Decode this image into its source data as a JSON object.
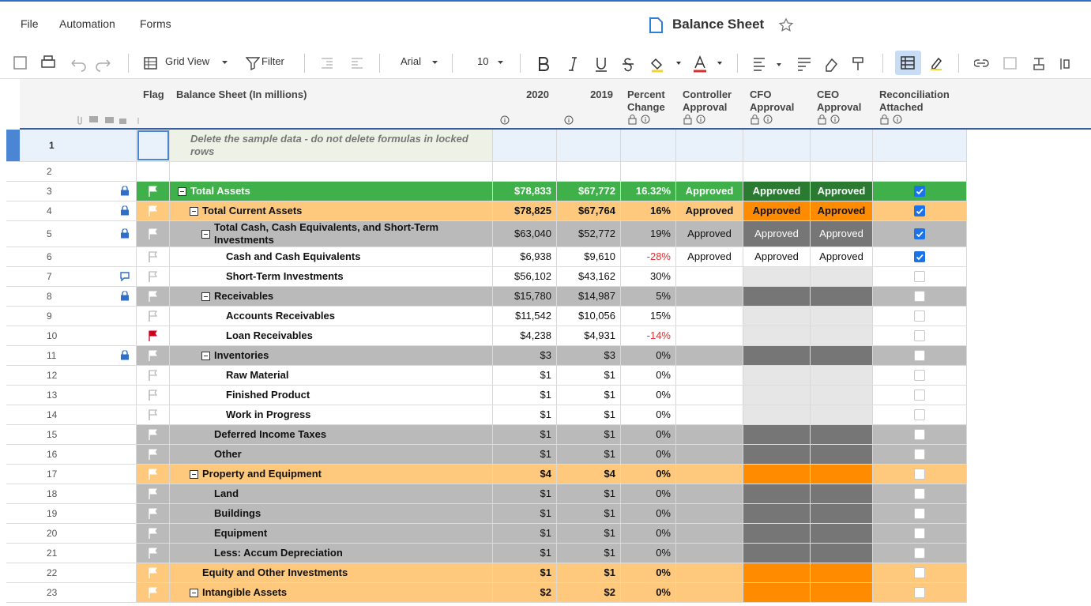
{
  "menu": [
    "File",
    "Automation",
    "Forms"
  ],
  "title": "Balance Sheet",
  "toolbar": {
    "view": "Grid View",
    "filter": "Filter",
    "font": "Arial",
    "size": "10"
  },
  "columns": [
    "Flag",
    "Balance Sheet (In millions)",
    "2020",
    "2019",
    "Percent Change",
    "Controller Approval",
    "CFO Approval",
    "CEO Approval",
    "Reconciliation Attached"
  ],
  "rows": [
    {
      "num": 1,
      "name": "Delete the sample data - do not delete formulas in locked rows",
      "style": "note"
    },
    {
      "num": 2,
      "style": "blank"
    },
    {
      "num": 3,
      "name": "Total Assets",
      "level": 0,
      "style": "green",
      "collapse": true,
      "lock": true,
      "v2020": "$78,833",
      "v2019": "$67,772",
      "pct": "16.32%",
      "ctrl": "Approved",
      "cfo": "Approved",
      "ceo": "Approved",
      "recon": true
    },
    {
      "num": 4,
      "name": "Total Current Assets",
      "level": 1,
      "style": "orange",
      "collapse": true,
      "lock": true,
      "v2020": "$78,825",
      "v2019": "$67,764",
      "pct": "16%",
      "ctrl": "Approved",
      "cfo": "Approved",
      "ceo": "Approved",
      "recon": true
    },
    {
      "num": 5,
      "name": "Total Cash, Cash Equivalents, and Short-Term Investments",
      "level": 2,
      "style": "gray",
      "collapse": true,
      "lock": true,
      "v2020": "$63,040",
      "v2019": "$52,772",
      "pct": "19%",
      "ctrl": "Approved",
      "cfo": "Approved",
      "ceo": "Approved",
      "recon": true
    },
    {
      "num": 6,
      "name": "Cash and Cash Equivalents",
      "level": 3,
      "style": "white",
      "v2020": "$6,938",
      "v2019": "$9,610",
      "pct": "-28%",
      "negative": true,
      "ctrl": "Approved",
      "cfo": "Approved",
      "ceo": "Approved",
      "recon": true
    },
    {
      "num": 7,
      "name": "Short-Term Investments",
      "level": 3,
      "style": "white",
      "comment": true,
      "v2020": "$56,102",
      "v2019": "$43,162",
      "pct": "30%",
      "recon": false
    },
    {
      "num": 8,
      "name": "Receivables",
      "level": 2,
      "style": "gray",
      "collapse": true,
      "lock": true,
      "v2020": "$15,780",
      "v2019": "$14,987",
      "pct": "5%",
      "recon": false
    },
    {
      "num": 9,
      "name": "Accounts Receivables",
      "level": 3,
      "style": "white",
      "v2020": "$11,542",
      "v2019": "$10,056",
      "pct": "15%",
      "recon": false
    },
    {
      "num": 10,
      "name": "Loan Receivables",
      "level": 3,
      "style": "white",
      "flag": "red",
      "v2020": "$4,238",
      "v2019": "$4,931",
      "pct": "-14%",
      "negative": true,
      "recon": false
    },
    {
      "num": 11,
      "name": "Inventories",
      "level": 2,
      "style": "gray",
      "collapse": true,
      "lock": true,
      "v2020": "$3",
      "v2019": "$3",
      "pct": "0%",
      "recon": false
    },
    {
      "num": 12,
      "name": "Raw Material",
      "level": 3,
      "style": "white",
      "v2020": "$1",
      "v2019": "$1",
      "pct": "0%",
      "recon": false
    },
    {
      "num": 13,
      "name": "Finished Product",
      "level": 3,
      "style": "white",
      "v2020": "$1",
      "v2019": "$1",
      "pct": "0%",
      "recon": false
    },
    {
      "num": 14,
      "name": "Work in Progress",
      "level": 3,
      "style": "white",
      "v2020": "$1",
      "v2019": "$1",
      "pct": "0%",
      "recon": false
    },
    {
      "num": 15,
      "name": "Deferred Income Taxes",
      "level": 2,
      "style": "gray",
      "v2020": "$1",
      "v2019": "$1",
      "pct": "0%",
      "recon": false
    },
    {
      "num": 16,
      "name": "Other",
      "level": 2,
      "style": "gray",
      "v2020": "$1",
      "v2019": "$1",
      "pct": "0%",
      "recon": false
    },
    {
      "num": 17,
      "name": "Property and Equipment",
      "level": 1,
      "style": "orange",
      "collapse": true,
      "v2020": "$4",
      "v2019": "$4",
      "pct": "0%",
      "recon": false
    },
    {
      "num": 18,
      "name": "Land",
      "level": 2,
      "style": "gray",
      "v2020": "$1",
      "v2019": "$1",
      "pct": "0%",
      "recon": false
    },
    {
      "num": 19,
      "name": "Buildings",
      "level": 2,
      "style": "gray",
      "v2020": "$1",
      "v2019": "$1",
      "pct": "0%",
      "recon": false
    },
    {
      "num": 20,
      "name": "Equipment",
      "level": 2,
      "style": "gray",
      "v2020": "$1",
      "v2019": "$1",
      "pct": "0%",
      "recon": false
    },
    {
      "num": 21,
      "name": "Less: Accum Depreciation",
      "level": 2,
      "style": "gray",
      "v2020": "$1",
      "v2019": "$1",
      "pct": "0%",
      "recon": false
    },
    {
      "num": 22,
      "name": "Equity and Other Investments",
      "level": 1,
      "style": "orange",
      "v2020": "$1",
      "v2019": "$1",
      "pct": "0%",
      "recon": false
    },
    {
      "num": 23,
      "name": "Intangible Assets",
      "level": 1,
      "style": "orange",
      "collapse": true,
      "v2020": "$2",
      "v2019": "$2",
      "pct": "0%",
      "recon": false
    }
  ]
}
